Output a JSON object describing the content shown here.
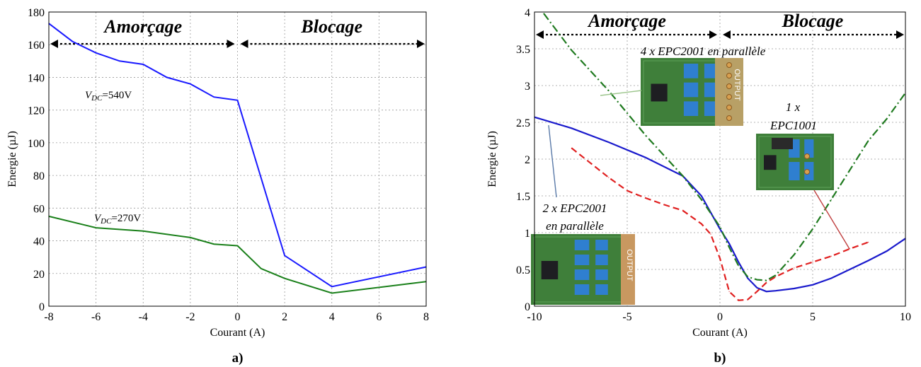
{
  "chart_data": [
    {
      "type": "line",
      "panel_label": "a)",
      "xlabel": "Courant (A)",
      "ylabel": "Energie (µJ)",
      "xlim": [
        -8,
        8
      ],
      "ylim": [
        0,
        180
      ],
      "xticks": [
        -8,
        -6,
        -4,
        -2,
        0,
        2,
        4,
        6,
        8
      ],
      "yticks": [
        0,
        20,
        40,
        60,
        80,
        100,
        120,
        140,
        160,
        180
      ],
      "grid": true,
      "regions": [
        {
          "label": "Amorçage",
          "x_range": [
            -8,
            0
          ]
        },
        {
          "label": "Blocage",
          "x_range": [
            0,
            8
          ]
        }
      ],
      "series": [
        {
          "name": "V_DC=540V",
          "label_main": "V",
          "label_sub": "DC",
          "label_rest": "=540V",
          "color": "#1a1aff",
          "x": [
            -8,
            -7,
            -6,
            -5,
            -4,
            -3,
            -2,
            -1,
            0,
            2,
            4,
            8
          ],
          "y": [
            173,
            162,
            155,
            150,
            148,
            140,
            136,
            128,
            126,
            31,
            12,
            24
          ]
        },
        {
          "name": "V_DC=270V",
          "label_main": "V",
          "label_sub": "DC",
          "label_rest": "=270V",
          "color": "#1a801a",
          "x": [
            -8,
            -6,
            -4,
            -2,
            -1,
            0,
            1,
            2,
            4,
            8
          ],
          "y": [
            55,
            48,
            46,
            42,
            38,
            37,
            23,
            17,
            8,
            15
          ]
        }
      ]
    },
    {
      "type": "line",
      "panel_label": "b)",
      "xlabel": "Courant (A)",
      "ylabel": "Energie (µJ)",
      "xlim": [
        -10,
        10
      ],
      "ylim": [
        0,
        4
      ],
      "xticks": [
        -10,
        -5,
        0,
        5,
        10
      ],
      "yticks": [
        0,
        0.5,
        1,
        1.5,
        2,
        2.5,
        3,
        3.5,
        4
      ],
      "grid": true,
      "regions": [
        {
          "label": "Amorçage",
          "x_range": [
            -10,
            0
          ]
        },
        {
          "label": "Blocage",
          "x_range": [
            0,
            10
          ]
        }
      ],
      "series": [
        {
          "name": "2 x EPC2001 en parallèle",
          "color": "#1a1acc",
          "style": "solid",
          "x": [
            -10,
            -8,
            -6,
            -4,
            -2,
            -1,
            0,
            0.5,
            1,
            1.5,
            2,
            2.5,
            3,
            4,
            5,
            6,
            7,
            8,
            9,
            10
          ],
          "y": [
            2.57,
            2.42,
            2.23,
            2.02,
            1.77,
            1.5,
            1.05,
            0.85,
            0.6,
            0.38,
            0.25,
            0.2,
            0.21,
            0.24,
            0.29,
            0.38,
            0.5,
            0.62,
            0.75,
            0.92
          ]
        },
        {
          "name": "1 x EPC1001",
          "color": "#e02020",
          "style": "dashed",
          "x": [
            -8,
            -7,
            -6,
            -5,
            -4,
            -3,
            -2,
            -1,
            -0.5,
            0,
            0.5,
            1,
            1.5,
            2,
            2.5,
            3,
            4,
            5,
            6,
            7,
            8
          ],
          "y": [
            2.15,
            1.95,
            1.75,
            1.57,
            1.47,
            1.38,
            1.3,
            1.12,
            0.98,
            0.65,
            0.2,
            0.08,
            0.09,
            0.2,
            0.32,
            0.4,
            0.52,
            0.6,
            0.68,
            0.78,
            0.87
          ]
        },
        {
          "name": "4 x EPC2001 en parallèle",
          "color": "#1f7a1f",
          "style": "dashdot",
          "x": [
            -9.5,
            -8,
            -6,
            -4,
            -2,
            -1,
            0,
            0.5,
            1,
            1.5,
            2,
            2.5,
            3,
            4,
            5,
            6,
            7,
            8,
            9,
            10
          ],
          "y": [
            3.98,
            3.48,
            2.93,
            2.32,
            1.77,
            1.45,
            1.08,
            0.8,
            0.55,
            0.4,
            0.36,
            0.35,
            0.42,
            0.7,
            1.05,
            1.45,
            1.85,
            2.25,
            2.55,
            2.9
          ]
        }
      ],
      "annotations": [
        "4 x EPC2001 en parallèle",
        "1 x",
        "EPC1001",
        "2 x EPC2001",
        "en parallèle"
      ],
      "inset_board_label": "OUTPUT"
    }
  ]
}
